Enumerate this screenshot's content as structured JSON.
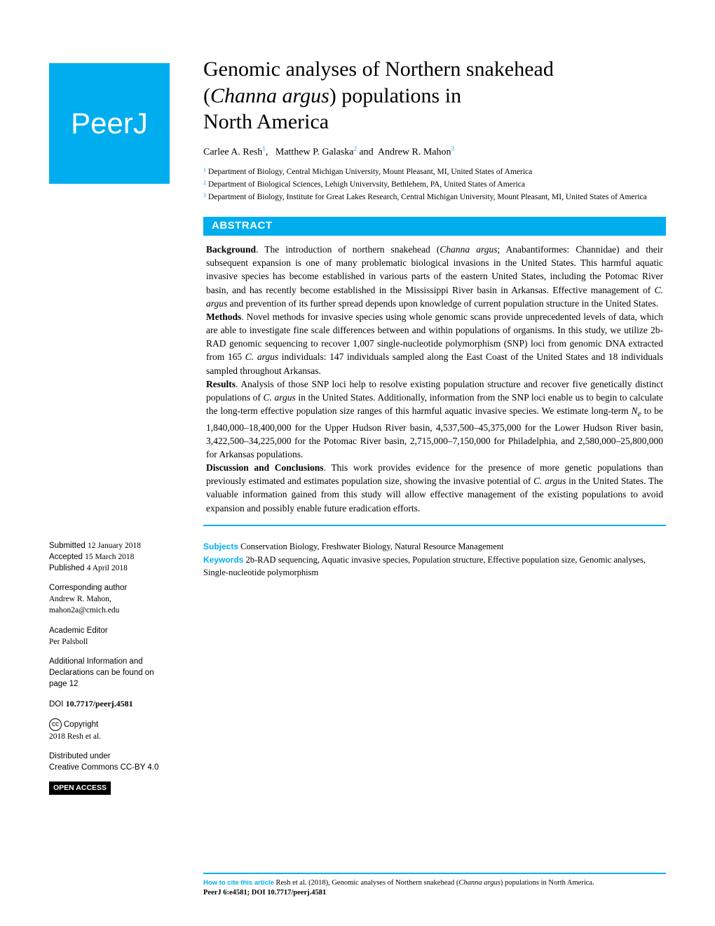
{
  "logo": {
    "text": "PeerJ"
  },
  "title": {
    "line1": "Genomic analyses of Northern snakehead",
    "line2a": "(",
    "line2_italic": "Channa argus",
    "line2b": ") populations in",
    "line3": "North America"
  },
  "authors": [
    {
      "name": "Carlee A. Resh",
      "sup": "1",
      "sep": ","
    },
    {
      "name": "Matthew P. Galaska",
      "sup": "2",
      "sep": " and"
    },
    {
      "name": "Andrew R. Mahon",
      "sup": "3",
      "sep": ""
    }
  ],
  "affiliations": [
    {
      "num": "1",
      "text": "Department of Biology, Central Michigan University, Mount Pleasant, MI, United States of America"
    },
    {
      "num": "2",
      "text": "Department of Biological Sciences, Lehigh Univervsity, Bethlehem, PA, United States of America"
    },
    {
      "num": "3",
      "text": "Department of Biology, Institute for Great Lakes Research, Central Michigan University, Mount Pleasant, MI, United States of America"
    }
  ],
  "abstract": {
    "header": "ABSTRACT",
    "background_label": "Background",
    "background_text": ". The introduction of northern snakehead (Channa argus; Anabantiformes: Channidae) and their subsequent expansion is one of many problematic biological invasions in the United States. This harmful aquatic invasive species has become established in various parts of the eastern United States, including the Potomac River basin, and has recently become established in the Mississippi River basin in Arkansas. Effective management of C. argus and prevention of its further spread depends upon knowledge of current population structure in the United States.",
    "methods_label": "Methods",
    "methods_text": ". Novel methods for invasive species using whole genomic scans provide unprecedented levels of data, which are able to investigate fine scale differences between and within populations of organisms. In this study, we utilize 2b-RAD genomic sequencing to recover 1,007 single-nucleotide polymorphism (SNP) loci from genomic DNA extracted from 165 C. argus individuals: 147 individuals sampled along the East Coast of the United States and 18 individuals sampled throughout Arkansas.",
    "results_label": "Results",
    "results_text": ". Analysis of those SNP loci help to resolve existing population structure and recover five genetically distinct populations of C. argus in the United States. Additionally, information from the SNP loci enable us to begin to calculate the long-term effective population size ranges of this harmful aquatic invasive species. We estimate long-term Nₑ to be 1,840,000–18,400,000 for the Upper Hudson River basin, 4,537,500–45,375,000 for the Lower Hudson River basin, 3,422,500–34,225,000 for the Potomac River basin, 2,715,000–7,150,000 for Philadelphia, and 2,580,000–25,800,000 for Arkansas populations.",
    "discussion_label": "Discussion and Conclusions",
    "discussion_text": ". This work provides evidence for the presence of more genetic populations than previously estimated and estimates population size, showing the invasive potential of C. argus in the United States. The valuable information gained from this study will allow effective management of the existing populations to avoid expansion and possibly enable future eradication efforts."
  },
  "subjects": {
    "label": "Subjects",
    "text": "Conservation Biology, Freshwater Biology, Natural Resource Management"
  },
  "keywords": {
    "label": "Keywords",
    "text": "2b-RAD sequencing, Aquatic invasive species, Population structure, Effective population size, Genomic analyses, Single-nucleotide polymorphism"
  },
  "sidebar": {
    "submitted_label": "Submitted",
    "submitted_date": "12 January 2018",
    "accepted_label": "Accepted",
    "accepted_date": "15 March 2018",
    "published_label": "Published",
    "published_date": "4 April 2018",
    "corresponding_label": "Corresponding author",
    "corresponding_name": "Andrew R. Mahon,",
    "corresponding_email": "mahon2a@cmich.edu",
    "editor_label": "Academic Editor",
    "editor_name": "Per Palsboll",
    "additional_info": "Additional Information and Declarations can be found on page 12",
    "doi_label": "DOI",
    "doi": "10.7717/peerj.4581",
    "copyright_label": "Copyright",
    "copyright_text": "2018 Resh et al.",
    "distributed_label": "Distributed under",
    "distributed_text": "Creative Commons CC-BY 4.0",
    "open_access": "OPEN ACCESS"
  },
  "footer": {
    "label": "How to cite this article",
    "text": "Resh et al. (2018), Genomic analyses of Northern snakehead (Channa argus) populations in North America.",
    "citation": "PeerJ 6:e4581; DOI 10.7717/peerj.4581"
  },
  "colors": {
    "brand": "#00aeef",
    "text": "#000000",
    "bg": "#ffffff"
  }
}
